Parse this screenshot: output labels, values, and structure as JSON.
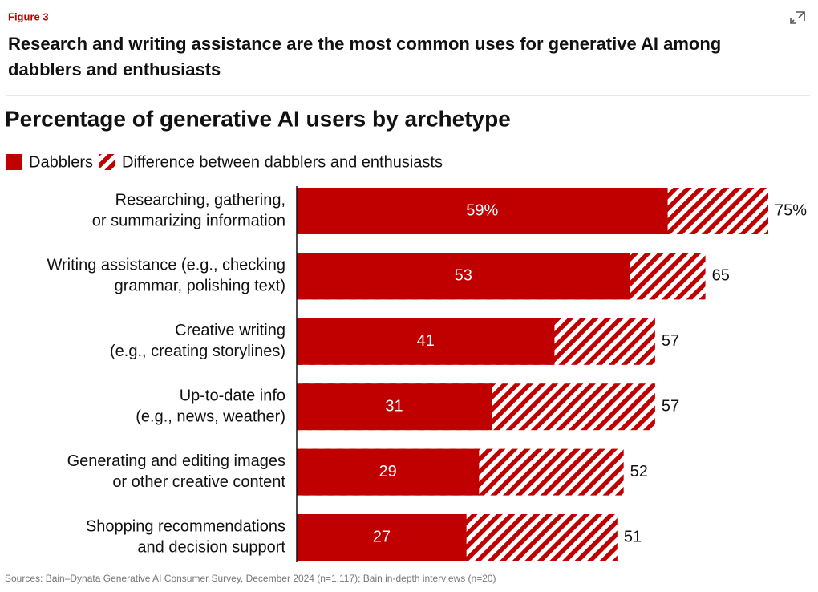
{
  "page": {
    "figure_label": "Figure 3",
    "headline": [
      "Research and writing assistance are the most common uses for generative AI among",
      "dabblers and enthusiasts"
    ],
    "source": "Sources: Bain–Dynata Generative AI Consumer Survey, December 2024 (n=1,117); Bain in-depth interviews (n=20)"
  },
  "chart_data": {
    "type": "bar",
    "orientation": "horizontal",
    "title": "Percentage of generative AI users by archetype",
    "categories": [
      [
        "Researching, gathering,",
        "or summarizing information"
      ],
      [
        "Writing assistance (e.g., checking",
        "grammar, polishing text)"
      ],
      [
        "Creative writing",
        "(e.g., creating storylines)"
      ],
      [
        "Up-to-date info",
        "(e.g., news, weather)"
      ],
      [
        "Generating and editing images",
        "or other creative content"
      ],
      [
        "Shopping recommendations",
        "and decision support"
      ]
    ],
    "series": [
      {
        "name": "Dabblers",
        "color": "#c00000",
        "values": [
          59,
          53,
          41,
          31,
          29,
          27
        ],
        "value_labels": [
          "59%",
          "53",
          "41",
          "31",
          "29",
          "27"
        ]
      },
      {
        "name": "Difference between dabblers and enthusiasts",
        "color": "#c00000",
        "pattern": "hatched",
        "values": [
          75,
          65,
          57,
          57,
          52,
          51
        ],
        "value_labels": [
          "75%",
          "65",
          "57",
          "57",
          "52",
          "51"
        ]
      }
    ],
    "xlim": [
      0,
      75
    ]
  }
}
